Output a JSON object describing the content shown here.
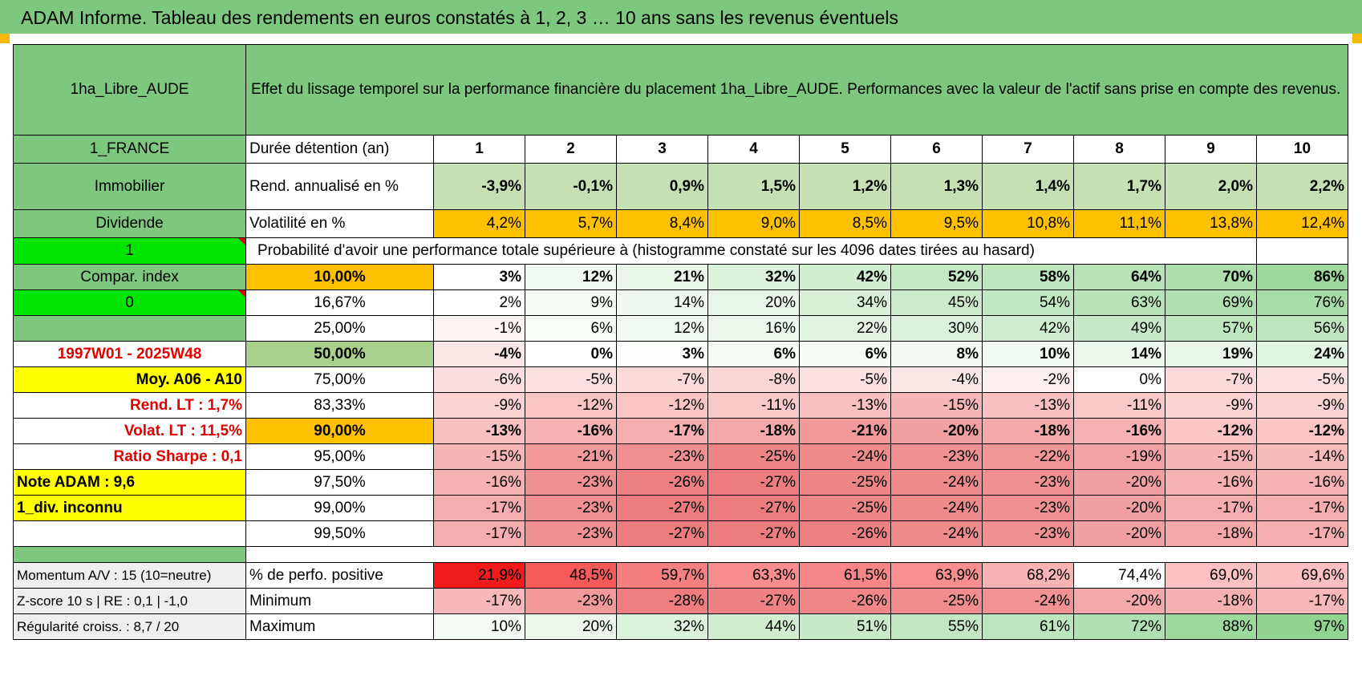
{
  "banner": "ADAM Informe. Tableau des rendements en euros constatés à 1, 2, 3 … 10 ans sans les revenus éventuels",
  "title": {
    "fund": "1ha_Libre_AUDE",
    "description": "Effet du lissage temporel sur la performance financière du placement 1ha_Libre_AUDE. Performances avec la valeur de l'actif sans prise en compte des revenus."
  },
  "years_row": {
    "left": "1_FRANCE",
    "label": "Durée détention (an)",
    "years": [
      "1",
      "2",
      "3",
      "4",
      "5",
      "6",
      "7",
      "8",
      "9",
      "10"
    ]
  },
  "rend_row": {
    "left": "Immobilier",
    "label": "Rend. annualisé en %",
    "values": [
      "-3,9%",
      "-0,1%",
      "0,9%",
      "1,5%",
      "1,2%",
      "1,3%",
      "1,4%",
      "1,7%",
      "2,0%",
      "2,2%"
    ],
    "colors": [
      "#c6e0b4",
      "#c6e0b4",
      "#c6e0b4",
      "#c6e0b4",
      "#c6e0b4",
      "#c6e0b4",
      "#c6e0b4",
      "#c6e0b4",
      "#c6e0b4",
      "#c6e0b4"
    ]
  },
  "vol_row": {
    "left": "Dividende",
    "label": "Volatilité en %",
    "values": [
      "4,2%",
      "5,7%",
      "8,4%",
      "9,0%",
      "8,5%",
      "9,5%",
      "10,8%",
      "11,1%",
      "13,8%",
      "12,4%"
    ]
  },
  "prob_row": {
    "left": "1",
    "label": "Probabilité d'avoir une performance totale supérieure à (histogramme constaté sur les 4096 dates tirées au hasard)"
  },
  "quantile_rows": [
    {
      "left": "Compar. index",
      "pct": "10,00%",
      "values": [
        "3%",
        "12%",
        "21%",
        "32%",
        "42%",
        "52%",
        "58%",
        "64%",
        "70%",
        "86%"
      ],
      "colors": [
        "#ffffff",
        "#f2fbf2",
        "#e9f7e9",
        "#dcf2dc",
        "#d0eed0",
        "#c4eac4",
        "#bde7bd",
        "#b6e4b6",
        "#addfad",
        "#9dd99d"
      ]
    },
    {
      "left": "0",
      "pct": "16,67%",
      "values": [
        "2%",
        "9%",
        "14%",
        "20%",
        "34%",
        "45%",
        "54%",
        "63%",
        "69%",
        "76%"
      ],
      "colors": [
        "#ffffff",
        "#f5fcf5",
        "#eff9ef",
        "#e7f6e7",
        "#d7f0d7",
        "#cbecca",
        "#c1e9c1",
        "#b6e4b6",
        "#afe0af",
        "#a6dca6"
      ]
    },
    {
      "left": "",
      "pct": "25,00%",
      "values": [
        "-1%",
        "6%",
        "12%",
        "16%",
        "22%",
        "30%",
        "42%",
        "49%",
        "57%",
        "56%"
      ],
      "colors": [
        "#fff5f5",
        "#f8fdf8",
        "#f0faf0",
        "#ecf8ec",
        "#e3f4e3",
        "#dbf1db",
        "#cfedcf",
        "#c6eac6",
        "#bde7bd",
        "#bee7be"
      ]
    },
    {
      "left": "1997W01 - 2025W48",
      "pct": "50,00%",
      "values": [
        "-4%",
        "0%",
        "3%",
        "6%",
        "6%",
        "8%",
        "10%",
        "14%",
        "19%",
        "24%"
      ],
      "colors": [
        "#fde6e6",
        "#ffffff",
        "#fbfefb",
        "#f6fcf6",
        "#f6fcf6",
        "#f3fbf3",
        "#f0faf0",
        "#ecf8ec",
        "#e7f6e7",
        "#e2f4e2"
      ]
    },
    {
      "left": "Moy. A06 - A10",
      "pct": "75,00%",
      "values": [
        "-6%",
        "-5%",
        "-7%",
        "-8%",
        "-5%",
        "-4%",
        "-2%",
        "0%",
        "-7%",
        "-5%"
      ],
      "colors": [
        "#fcdede",
        "#fde1e1",
        "#fcdada",
        "#fbd6d6",
        "#fde1e1",
        "#fde6e6",
        "#fef0f0",
        "#ffffff",
        "#fcdada",
        "#fde1e1"
      ]
    },
    {
      "left": "Rend. LT :    1,7%",
      "pct": "83,33%",
      "values": [
        "-9%",
        "-12%",
        "-12%",
        "-11%",
        "-13%",
        "-15%",
        "-13%",
        "-11%",
        "-9%",
        "-9%"
      ],
      "colors": [
        "#fbd2d2",
        "#f9c4c4",
        "#f9c4c4",
        "#f9c8c8",
        "#f8c0c0",
        "#f7b6b6",
        "#f8c0c0",
        "#f9c8c8",
        "#fbd2d2",
        "#fbd2d2"
      ]
    },
    {
      "left": "Volat. LT :    11,5%",
      "pct": "90,00%",
      "values": [
        "-13%",
        "-16%",
        "-17%",
        "-18%",
        "-21%",
        "-20%",
        "-18%",
        "-16%",
        "-12%",
        "-12%"
      ],
      "colors": [
        "#f8c0c0",
        "#f6b2b2",
        "#f5adad",
        "#f4a8a8",
        "#f29a9a",
        "#f29f9f",
        "#f4a8a8",
        "#f6b2b2",
        "#f9c4c4",
        "#f9c4c4"
      ]
    },
    {
      "left": "Ratio Sharpe :    0,1",
      "pct": "95,00%",
      "values": [
        "-15%",
        "-21%",
        "-23%",
        "-25%",
        "-24%",
        "-23%",
        "-22%",
        "-19%",
        "-15%",
        "-14%"
      ],
      "colors": [
        "#f7b6b6",
        "#f29a9a",
        "#f09090",
        "#ee8686",
        "#ef8b8b",
        "#f09090",
        "#f19595",
        "#f3a3a3",
        "#f7b6b6",
        "#f7bbbb"
      ]
    },
    {
      "left": "Note ADAM : 9,6",
      "pct": "97,50%",
      "values": [
        "-16%",
        "-23%",
        "-26%",
        "-27%",
        "-25%",
        "-24%",
        "-23%",
        "-20%",
        "-16%",
        "-16%"
      ],
      "colors": [
        "#f6b2b2",
        "#f09090",
        "#ed8181",
        "#ed7c7c",
        "#ee8686",
        "#ef8b8b",
        "#f09090",
        "#f29f9f",
        "#f6b2b2",
        "#f6b2b2"
      ]
    },
    {
      "left": "1_div. inconnu",
      "pct": "99,00%",
      "values": [
        "-17%",
        "-23%",
        "-27%",
        "-27%",
        "-25%",
        "-24%",
        "-23%",
        "-20%",
        "-17%",
        "-17%"
      ],
      "colors": [
        "#f5adad",
        "#f09090",
        "#ed7c7c",
        "#ed7c7c",
        "#ee8686",
        "#ef8b8b",
        "#f09090",
        "#f29f9f",
        "#f5adad",
        "#f5adad"
      ]
    },
    {
      "left": "",
      "pct": "99,50%",
      "values": [
        "-17%",
        "-23%",
        "-27%",
        "-27%",
        "-26%",
        "-24%",
        "-23%",
        "-20%",
        "-18%",
        "-17%"
      ],
      "colors": [
        "#f5adad",
        "#f09090",
        "#ed7c7c",
        "#ed7c7c",
        "#ed8181",
        "#ef8b8b",
        "#f09090",
        "#f29f9f",
        "#f4a8a8",
        "#f5adad"
      ]
    }
  ],
  "stats_rows": [
    {
      "left": "Momentum A/V : 15 (10=neutre)",
      "label": "% de perfo. positive",
      "values": [
        "21,9%",
        "48,5%",
        "59,7%",
        "63,3%",
        "61,5%",
        "63,9%",
        "68,2%",
        "74,4%",
        "69,0%",
        "69,6%"
      ],
      "colors": [
        "#f01c1c",
        "#f45a5a",
        "#f68080",
        "#f78d8d",
        "#f78686",
        "#f78f8f",
        "#fab3b3",
        "#ffffff",
        "#fbc1c1",
        "#fbbfbf"
      ]
    },
    {
      "left": "Z-score 10 s | RE : 0,1 | -1,0",
      "label": "Minimum",
      "values": [
        "-17%",
        "-23%",
        "-28%",
        "-27%",
        "-26%",
        "-25%",
        "-24%",
        "-20%",
        "-18%",
        "-17%"
      ],
      "colors": [
        "#f6b8b8",
        "#f29a9a",
        "#ee7d7d",
        "#ef8282",
        "#ef8787",
        "#f08d8d",
        "#f19292",
        "#f4a8a8",
        "#f5b0b0",
        "#f6b8b8"
      ]
    },
    {
      "left": "Régularité croiss. : 8,7 / 20",
      "label": "Maximum",
      "values": [
        "10%",
        "20%",
        "32%",
        "44%",
        "51%",
        "55%",
        "61%",
        "72%",
        "88%",
        "97%"
      ],
      "colors": [
        "#f5fcf5",
        "#eaf7ea",
        "#dcf2dc",
        "#cfedcf",
        "#c7eac7",
        "#c2e8c2",
        "#bbe5bb",
        "#afe0af",
        "#9dd99d",
        "#90d490"
      ]
    }
  ]
}
